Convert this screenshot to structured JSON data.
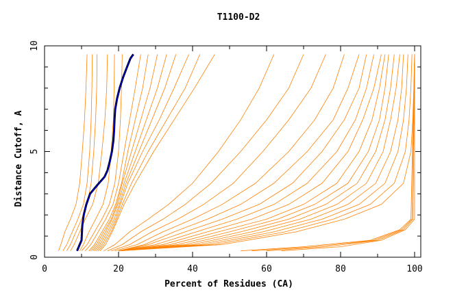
{
  "chart_data": {
    "type": "line",
    "title": "T1100-D2",
    "xlabel": "Percent of Residues (CA)",
    "ylabel": "Distance Cutoff, A",
    "xlim": [
      0,
      100
    ],
    "ylim": [
      0,
      10
    ],
    "xticks": [
      "0",
      "20",
      "40",
      "60",
      "80",
      "100"
    ],
    "yticks": [
      "0",
      "5",
      "10"
    ],
    "grid": false,
    "legend": "none",
    "colors": {
      "models": "#ff8000",
      "highlight_outer": "#000000",
      "highlight_inner": "#0000cc"
    },
    "series": [
      {
        "role": "highlight",
        "x": [
          8.8,
          9.5,
          10.0,
          10.2,
          10.6,
          11.3,
          12.3,
          14.2,
          16.2,
          17.0,
          17.6,
          18.2,
          18.6,
          18.8,
          18.9,
          19.1,
          19.6,
          20.3,
          21.2,
          22.3,
          23.2,
          24.0
        ],
        "y": [
          0.3,
          0.6,
          0.8,
          1.5,
          2.0,
          2.5,
          3.0,
          3.4,
          3.8,
          4.1,
          4.5,
          5.0,
          5.5,
          6.0,
          6.5,
          7.0,
          7.5,
          8.0,
          8.5,
          9.0,
          9.4,
          9.6
        ]
      },
      {
        "x": [
          3.8,
          4.4,
          5.5,
          7.0,
          8.5,
          9.5,
          10.2,
          10.8,
          11.2,
          11.5
        ],
        "y": [
          0.3,
          0.6,
          1.2,
          1.8,
          2.5,
          3.5,
          5.0,
          6.5,
          8.0,
          9.6
        ]
      },
      {
        "x": [
          5.0,
          6.0,
          7.5,
          9.0,
          10.5,
          11.5,
          12.2,
          12.6,
          12.8,
          12.9
        ],
        "y": [
          0.3,
          0.6,
          1.2,
          1.8,
          2.5,
          3.5,
          5.0,
          6.5,
          8.0,
          9.6
        ]
      },
      {
        "x": [
          6.0,
          7.0,
          8.5,
          10.0,
          11.5,
          12.6,
          13.3,
          13.8,
          14.1,
          14.2
        ],
        "y": [
          0.3,
          0.6,
          1.2,
          1.8,
          2.5,
          3.5,
          5.0,
          6.5,
          8.0,
          9.6
        ]
      },
      {
        "x": [
          7.0,
          8.0,
          9.5,
          11.0,
          13.0,
          14.5,
          15.5,
          16.3,
          16.8,
          17.0
        ],
        "y": [
          0.3,
          0.6,
          1.2,
          1.8,
          2.5,
          3.5,
          5.0,
          6.5,
          8.0,
          9.6
        ]
      },
      {
        "x": [
          9.5,
          10.5,
          12.0,
          13.8,
          15.8,
          17.2,
          18.0,
          18.6,
          18.8,
          18.9
        ],
        "y": [
          0.3,
          0.6,
          1.2,
          1.8,
          2.5,
          3.5,
          5.0,
          6.5,
          8.0,
          9.6
        ]
      },
      {
        "x": [
          10.0,
          11.5,
          13.5,
          15.5,
          17.5,
          19.0,
          20.0,
          20.5,
          20.8,
          21.0
        ],
        "y": [
          0.3,
          0.6,
          1.2,
          1.8,
          2.5,
          3.5,
          5.0,
          6.5,
          8.0,
          9.6
        ]
      },
      {
        "x": [
          11.0,
          12.5,
          14.5,
          16.5,
          18.5,
          20.0,
          21.5,
          23.0,
          24.5,
          26.0
        ],
        "y": [
          0.3,
          0.6,
          1.2,
          1.8,
          2.5,
          3.5,
          5.0,
          6.5,
          8.0,
          9.6
        ]
      },
      {
        "x": [
          12.0,
          13.5,
          15.5,
          17.5,
          19.2,
          20.8,
          22.5,
          24.5,
          26.5,
          28.0
        ],
        "y": [
          0.3,
          0.6,
          1.2,
          1.8,
          2.5,
          3.5,
          5.0,
          6.5,
          8.0,
          9.6
        ]
      },
      {
        "x": [
          12.5,
          14.0,
          16.0,
          18.0,
          19.5,
          21.0,
          23.5,
          26.0,
          28.5,
          30.5
        ],
        "y": [
          0.3,
          0.6,
          1.2,
          1.8,
          2.5,
          3.5,
          5.0,
          6.5,
          8.0,
          9.6
        ]
      },
      {
        "x": [
          13.0,
          14.5,
          16.5,
          18.3,
          19.8,
          21.5,
          24.5,
          27.5,
          30.5,
          33.0
        ],
        "y": [
          0.3,
          0.6,
          1.2,
          1.8,
          2.5,
          3.5,
          5.0,
          6.5,
          8.0,
          9.6
        ]
      },
      {
        "x": [
          13.5,
          15.0,
          17.0,
          18.8,
          20.2,
          22.0,
          25.5,
          29.0,
          32.5,
          35.5
        ],
        "y": [
          0.3,
          0.6,
          1.2,
          1.8,
          2.5,
          3.5,
          5.0,
          6.5,
          8.0,
          9.6
        ]
      },
      {
        "x": [
          14.0,
          15.5,
          17.5,
          19.2,
          20.5,
          22.5,
          26.5,
          31.0,
          35.0,
          39.0
        ],
        "y": [
          0.3,
          0.6,
          1.2,
          1.8,
          2.5,
          3.5,
          5.0,
          6.5,
          8.0,
          9.6
        ]
      },
      {
        "x": [
          14.5,
          16.0,
          18.0,
          19.5,
          21.0,
          23.5,
          28.0,
          33.0,
          38.0,
          42.0
        ],
        "y": [
          0.3,
          0.6,
          1.2,
          1.8,
          2.5,
          3.5,
          5.0,
          6.5,
          8.0,
          9.6
        ]
      },
      {
        "x": [
          15.0,
          16.5,
          18.3,
          19.8,
          21.5,
          24.5,
          29.5,
          35.0,
          40.5,
          46.0
        ],
        "y": [
          0.3,
          0.6,
          1.2,
          1.8,
          2.5,
          3.5,
          5.0,
          6.5,
          8.0,
          9.6
        ]
      },
      {
        "x": [
          16.0,
          19.0,
          23.0,
          28.0,
          33.5,
          40.0,
          47.0,
          53.0,
          58.0,
          62.0
        ],
        "y": [
          0.3,
          0.6,
          1.2,
          1.8,
          2.5,
          3.5,
          5.0,
          6.5,
          8.0,
          9.6
        ]
      },
      {
        "x": [
          17.0,
          21.0,
          26.0,
          32.0,
          38.0,
          45.0,
          53.0,
          60.0,
          66.0,
          70.0
        ],
        "y": [
          0.3,
          0.6,
          1.2,
          1.8,
          2.5,
          3.5,
          5.0,
          6.5,
          8.0,
          9.6
        ]
      },
      {
        "x": [
          18.0,
          23.0,
          29.0,
          36.0,
          43.0,
          51.0,
          59.0,
          66.0,
          72.0,
          76.0
        ],
        "y": [
          0.3,
          0.6,
          1.2,
          1.8,
          2.5,
          3.5,
          5.0,
          6.5,
          8.0,
          9.6
        ]
      },
      {
        "x": [
          19.0,
          25.0,
          32.0,
          40.0,
          48.0,
          57.0,
          66.0,
          73.0,
          78.0,
          81.0
        ],
        "y": [
          0.3,
          0.6,
          1.2,
          1.8,
          2.5,
          3.5,
          5.0,
          6.5,
          8.0,
          9.6
        ]
      },
      {
        "x": [
          20.0,
          27.0,
          35.0,
          44.0,
          53.0,
          62.0,
          71.0,
          78.0,
          82.0,
          85.0
        ],
        "y": [
          0.3,
          0.6,
          1.2,
          1.8,
          2.5,
          3.5,
          5.0,
          6.5,
          8.0,
          9.6
        ]
      },
      {
        "x": [
          20.0,
          28.0,
          38.0,
          48.0,
          58.0,
          67.0,
          75.0,
          81.0,
          85.0,
          87.0
        ],
        "y": [
          0.3,
          0.6,
          1.2,
          1.8,
          2.5,
          3.5,
          5.0,
          6.5,
          8.0,
          9.6
        ]
      },
      {
        "x": [
          20.0,
          30.0,
          41.0,
          52.0,
          62.0,
          71.0,
          79.0,
          84.0,
          87.0,
          89.0
        ],
        "y": [
          0.3,
          0.6,
          1.2,
          1.8,
          2.5,
          3.5,
          5.0,
          6.5,
          8.0,
          9.6
        ]
      },
      {
        "x": [
          20.0,
          32.0,
          44.0,
          56.0,
          66.0,
          75.0,
          82.0,
          86.0,
          89.0,
          91.0
        ],
        "y": [
          0.3,
          0.6,
          1.2,
          1.8,
          2.5,
          3.5,
          5.0,
          6.5,
          8.0,
          9.6
        ]
      },
      {
        "x": [
          20.0,
          34.0,
          47.0,
          60.0,
          70.0,
          79.0,
          85.0,
          88.5,
          90.5,
          92.0
        ],
        "y": [
          0.3,
          0.6,
          1.2,
          1.8,
          2.5,
          3.5,
          5.0,
          6.5,
          8.0,
          9.6
        ]
      },
      {
        "x": [
          20.0,
          36.0,
          50.0,
          63.0,
          73.0,
          82.0,
          87.5,
          90.5,
          92.0,
          93.0
        ],
        "y": [
          0.3,
          0.6,
          1.2,
          1.8,
          2.5,
          3.5,
          5.0,
          6.5,
          8.0,
          9.6
        ]
      },
      {
        "x": [
          20.0,
          38.0,
          53.0,
          66.0,
          76.0,
          84.5,
          89.5,
          92.0,
          93.5,
          94.5
        ],
        "y": [
          0.3,
          0.6,
          1.2,
          1.8,
          2.5,
          3.5,
          5.0,
          6.5,
          8.0,
          9.6
        ]
      },
      {
        "x": [
          20.0,
          40.0,
          56.0,
          69.0,
          79.0,
          87.0,
          91.5,
          93.5,
          95.0,
          96.0
        ],
        "y": [
          0.3,
          0.6,
          1.2,
          1.8,
          2.5,
          3.5,
          5.0,
          6.5,
          8.0,
          9.6
        ]
      },
      {
        "x": [
          20.0,
          42.0,
          59.0,
          72.0,
          82.0,
          89.5,
          93.5,
          95.5,
          96.5,
          97.0
        ],
        "y": [
          0.3,
          0.6,
          1.2,
          1.8,
          2.5,
          3.5,
          5.0,
          6.5,
          8.0,
          9.6
        ]
      },
      {
        "x": [
          20.0,
          44.0,
          62.0,
          75.0,
          85.0,
          92.0,
          95.5,
          97.0,
          97.8,
          98.2
        ],
        "y": [
          0.3,
          0.6,
          1.2,
          1.8,
          2.5,
          3.5,
          5.0,
          6.5,
          8.0,
          9.6
        ]
      },
      {
        "x": [
          20.0,
          46.0,
          65.0,
          78.0,
          88.0,
          94.5,
          97.5,
          98.5,
          99.0,
          99.3
        ],
        "y": [
          0.3,
          0.6,
          1.2,
          1.8,
          2.5,
          3.5,
          5.0,
          6.5,
          8.0,
          9.6
        ]
      },
      {
        "x": [
          20.0,
          48.0,
          68.0,
          81.0,
          91.0,
          97.0,
          99.0,
          99.5,
          99.8,
          100.0
        ],
        "y": [
          0.3,
          0.6,
          1.2,
          1.8,
          2.5,
          3.5,
          5.0,
          6.5,
          8.0,
          9.6
        ]
      },
      {
        "x": [
          53.0,
          70.0,
          88.0,
          96.0,
          99.0,
          100.0
        ],
        "y": [
          0.3,
          0.5,
          0.8,
          1.3,
          1.8,
          9.6
        ]
      },
      {
        "x": [
          56.0,
          73.0,
          89.0,
          96.5,
          99.3,
          100.0
        ],
        "y": [
          0.3,
          0.5,
          0.8,
          1.3,
          1.8,
          9.6
        ]
      },
      {
        "x": [
          60.0,
          76.0,
          90.0,
          97.0,
          99.6,
          100.0
        ],
        "y": [
          0.3,
          0.5,
          0.8,
          1.3,
          1.8,
          9.6
        ]
      },
      {
        "x": [
          64.0,
          80.0,
          91.0,
          97.5,
          100.0,
          100.0
        ],
        "y": [
          0.3,
          0.5,
          0.8,
          1.3,
          1.8,
          9.6
        ]
      }
    ]
  }
}
